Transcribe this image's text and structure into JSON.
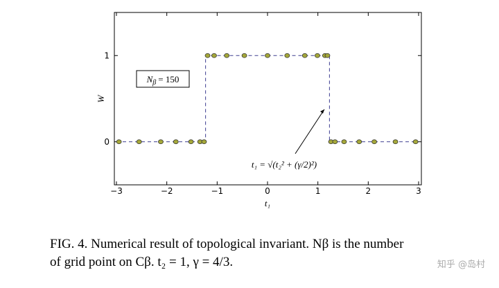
{
  "chart_data": {
    "type": "scatter",
    "xlabel": "t₁",
    "ylabel": "W",
    "xlim": [
      -3,
      3
    ],
    "ylim": [
      -0.5,
      1.5
    ],
    "xticks": [
      {
        "value": -3,
        "label": "−3"
      },
      {
        "value": -2,
        "label": "−2"
      },
      {
        "value": -1,
        "label": "−1"
      },
      0,
      1,
      2,
      3
    ],
    "yticks": [
      0,
      1
    ],
    "series": [
      {
        "color": "#3b3b8f",
        "linestyle": "dashed",
        "marker": false,
        "x": [
          -3,
          -1.23,
          -1.23,
          1.23,
          1.23,
          3
        ],
        "values": [
          0,
          0,
          1,
          1,
          0,
          0
        ]
      },
      {
        "color": "#a5a83a",
        "linestyle": "none",
        "marker": true,
        "x": [
          -2.95,
          -2.55,
          -2.12,
          -1.82,
          -1.52,
          -1.34,
          -1.26,
          -1.19,
          -1.06,
          -0.81,
          -0.46,
          0,
          0.39,
          0.74,
          0.99,
          1.14,
          1.19,
          1.26,
          1.34,
          1.52,
          1.82,
          2.12,
          2.54,
          2.94
        ],
        "values": [
          0,
          0,
          0,
          0,
          0,
          0,
          0,
          1,
          1,
          1,
          1,
          1,
          1,
          1,
          1,
          1,
          1,
          0,
          0,
          0,
          0,
          0,
          0,
          0
        ]
      }
    ],
    "box_label": {
      "symbol": "N",
      "subscript": "β",
      "text": "= 150"
    },
    "annotation": "t₁ = √(t₂² + (γ/2)²)"
  },
  "caption": [
    "FIG. 4.  Numerical result of topological invariant.  Nβ is the number",
    "of grid point on Cβ. t₂ = 1, γ = 4/3."
  ],
  "watermark": "知乎 @岛村"
}
